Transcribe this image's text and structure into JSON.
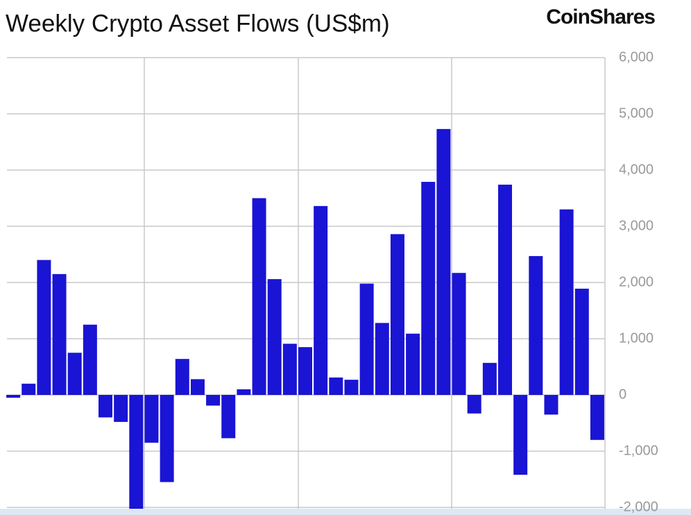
{
  "chart_data": {
    "type": "bar",
    "title": "Weekly Crypto Asset Flows (US$m)",
    "logo": "CoinShares",
    "categories": [
      null,
      null,
      null,
      null,
      null,
      null,
      null,
      null,
      null,
      null,
      null,
      null,
      null,
      null,
      null,
      null,
      null,
      null,
      null,
      null,
      null,
      null,
      null,
      null,
      null,
      null,
      null,
      null,
      null,
      null,
      null,
      null,
      null,
      null,
      null,
      null,
      null,
      null,
      null
    ],
    "values": [
      -50,
      200,
      2400,
      2150,
      750,
      1250,
      -400,
      -480,
      -2300,
      -850,
      -1550,
      640,
      280,
      -190,
      -770,
      100,
      3500,
      2060,
      910,
      850,
      3360,
      310,
      270,
      1980,
      1280,
      2860,
      1090,
      3790,
      4730,
      2170,
      -330,
      570,
      3740,
      -1420,
      2470,
      -350,
      3300,
      1890,
      -800
    ],
    "color": "#1a14d4",
    "ylim": [
      -2050,
      6000
    ],
    "yticks": [
      {
        "value": -2000,
        "label": "-2,000"
      },
      {
        "value": -1000,
        "label": "-1,000"
      },
      0,
      {
        "value": 1000,
        "label": "1,000"
      },
      {
        "value": 2000,
        "label": "2,000"
      },
      {
        "value": 3000,
        "label": "3,000"
      },
      {
        "value": 4000,
        "label": "4,000"
      },
      {
        "value": 5000,
        "label": "5,000"
      },
      {
        "value": 6000,
        "label": "6,000"
      }
    ],
    "grid": true,
    "yaxis_side": "right"
  }
}
